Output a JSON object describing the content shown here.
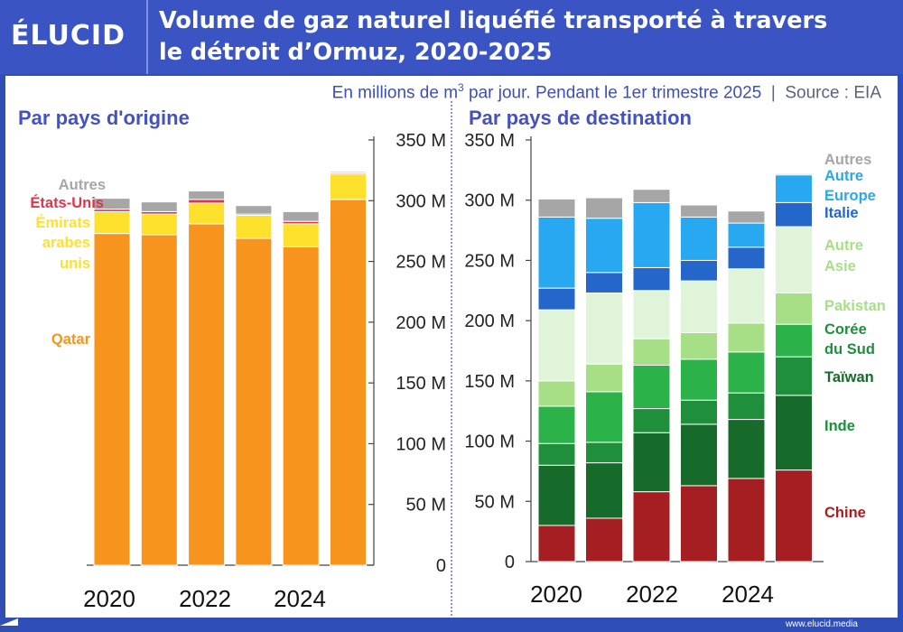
{
  "logo": "ÉLUCID",
  "title_line1": "Volume de gaz naturel liquéfié transporté à travers",
  "title_line2": "le détroit d’Ormuz, 2020-2025",
  "subtitle_pre": "En millions de m",
  "subtitle_sup": "3",
  "subtitle_post": " par jour. Pendant le 1er trimestre 2025",
  "subtitle_sep": "|",
  "subtitle_source": "Source : EIA",
  "footer": "www.elucid.media",
  "colors": {
    "qatar": "#f7941d",
    "emirats": "#fde12d",
    "etats_unis": "#d9374b",
    "autres_gray": "#a6a6a6",
    "chine": "#a51f22",
    "inde": "#166b2a",
    "taiwan": "#1f8f3c",
    "coree": "#2bb34a",
    "pakistan": "#a7df86",
    "autre_asie": "#dff4d9",
    "italie": "#2466c9",
    "europe": "#28a8f0",
    "autre": "#28a8f0"
  },
  "chart_data": [
    {
      "type": "bar",
      "stacked": true,
      "title": "Par pays d'origine",
      "categories": [
        "2020",
        "2021",
        "2022",
        "2023",
        "2024",
        "2025"
      ],
      "x_tick_labels": [
        "2020",
        "2022",
        "2024"
      ],
      "ylim": [
        0,
        350
      ],
      "y_ticks": [
        0,
        50,
        100,
        150,
        200,
        250,
        300,
        350
      ],
      "y_tick_labels": [
        "0",
        "50 M",
        "100 M",
        "150 M",
        "200 M",
        "250 M",
        "300 M",
        "350 M"
      ],
      "series": [
        {
          "name": "Qatar",
          "color_key": "qatar",
          "values": [
            273,
            272,
            281,
            269,
            262,
            301
          ]
        },
        {
          "name": "Émirats arabes unis",
          "color_key": "emirats",
          "values": [
            18,
            17,
            17,
            19,
            19,
            21
          ]
        },
        {
          "name": "États-Unis",
          "color_key": "etats_unis",
          "values": [
            2,
            2,
            3,
            1,
            2,
            1
          ]
        },
        {
          "name": "Autres",
          "color_key": "autres_gray",
          "values": [
            9,
            8,
            7,
            7,
            8,
            1
          ]
        }
      ],
      "legend_labels": [
        {
          "text": "Autres",
          "color_key": "autres_gray"
        },
        {
          "text": "États-Unis",
          "color_key": "etats_unis"
        },
        {
          "text": "Émirats",
          "color_key": "emirats"
        },
        {
          "text": "arabes",
          "color_key": "emirats"
        },
        {
          "text": "unis",
          "color_key": "emirats"
        },
        {
          "text": "Qatar",
          "color_key": "qatar"
        }
      ]
    },
    {
      "type": "bar",
      "stacked": true,
      "title": "Par pays de destination",
      "categories": [
        "2020",
        "2021",
        "2022",
        "2023",
        "2024",
        "2025"
      ],
      "x_tick_labels": [
        "2020",
        "2022",
        "2024"
      ],
      "ylim": [
        0,
        350
      ],
      "y_ticks": [
        0,
        50,
        100,
        150,
        200,
        250,
        300,
        350
      ],
      "y_tick_labels": [
        "0",
        "50 M",
        "100 M",
        "150 M",
        "200 M",
        "250 M",
        "300 M",
        "350 M"
      ],
      "series": [
        {
          "name": "Chine",
          "color_key": "chine",
          "values": [
            30,
            36,
            58,
            63,
            69,
            76
          ]
        },
        {
          "name": "Inde",
          "color_key": "inde",
          "values": [
            50,
            46,
            49,
            51,
            49,
            62
          ]
        },
        {
          "name": "Taïwan",
          "color_key": "taiwan",
          "values": [
            18,
            17,
            20,
            20,
            22,
            32
          ]
        },
        {
          "name": "Corée du Sud",
          "color_key": "coree",
          "values": [
            31,
            42,
            36,
            34,
            34,
            27
          ]
        },
        {
          "name": "Pakistan",
          "color_key": "pakistan",
          "values": [
            21,
            23,
            22,
            22,
            24,
            26
          ]
        },
        {
          "name": "Autre Asie",
          "color_key": "autre_asie",
          "values": [
            59,
            59,
            40,
            43,
            45,
            55
          ]
        },
        {
          "name": "Italie",
          "color_key": "italie",
          "values": [
            18,
            17,
            19,
            17,
            18,
            20
          ]
        },
        {
          "name": "Europe",
          "color_key": "europe",
          "values": [
            59,
            45,
            54,
            36,
            20,
            23
          ]
        },
        {
          "name": "Autres",
          "color_key": "autres_gray",
          "values": [
            15,
            17,
            11,
            10,
            10,
            1
          ]
        }
      ],
      "legend_labels": [
        {
          "text": "Autres",
          "color_key": "autres_gray"
        },
        {
          "text": "Autre",
          "color_key": "europe"
        },
        {
          "text": "Europe",
          "color_key": "europe"
        },
        {
          "text": "Italie",
          "color_key": "italie"
        },
        {
          "text": "Autre",
          "color_key": "pakistan"
        },
        {
          "text": "Asie",
          "color_key": "pakistan"
        },
        {
          "text": "Pakistan",
          "color_key": "pakistan"
        },
        {
          "text": "Corée",
          "color_key": "taiwan"
        },
        {
          "text": "du Sud",
          "color_key": "taiwan"
        },
        {
          "text": "Taïwan",
          "color_key": "inde"
        },
        {
          "text": "Inde",
          "color_key": "taiwan"
        },
        {
          "text": "Chine",
          "color_key": "chine"
        }
      ]
    }
  ]
}
